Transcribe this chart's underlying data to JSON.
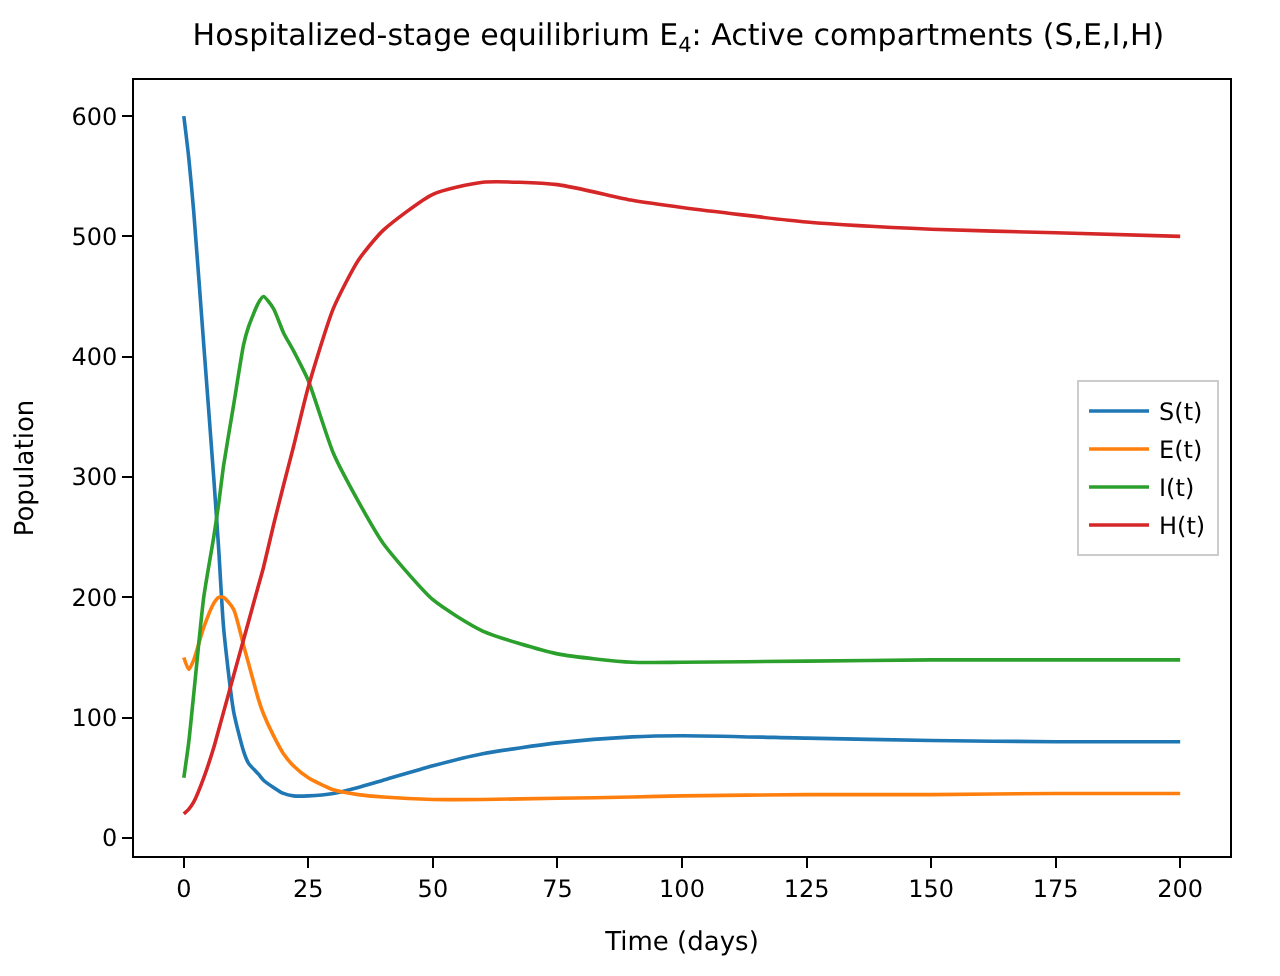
{
  "chart_data": {
    "type": "line",
    "title": "Hospitalized-stage equilibrium E$_{4}$: Active compartments (S,E,I,H)",
    "xlabel": "Time (days)",
    "ylabel": "Population",
    "x": [
      0,
      1,
      2,
      4,
      6,
      7,
      8,
      10,
      12,
      13,
      15,
      16,
      18,
      20,
      22,
      25,
      30,
      35,
      40,
      50,
      60,
      75,
      90,
      100,
      125,
      150,
      175,
      200
    ],
    "xlim": [
      -10,
      210
    ],
    "xticks": [
      0,
      25,
      50,
      75,
      100,
      125,
      150,
      175,
      200
    ],
    "ylim": [
      -15,
      630
    ],
    "yticks": [
      0,
      100,
      200,
      300,
      400,
      500,
      600
    ],
    "legend": "right",
    "line_style": "solid",
    "marker": "none",
    "series": [
      {
        "name": "S(t)",
        "color": "#1f77b4",
        "values": [
          600,
          565,
          520,
          410,
          300,
          240,
          174,
          105,
          72,
          62,
          53,
          48,
          42,
          37,
          35,
          35,
          37,
          42,
          48,
          60,
          70,
          79,
          84,
          85,
          83,
          81,
          80,
          80
        ]
      },
      {
        "name": "E(t)",
        "color": "#ff7f0e",
        "values": [
          150,
          140,
          148,
          175,
          195,
          200,
          200,
          190,
          160,
          145,
          115,
          103,
          85,
          70,
          60,
          50,
          40,
          36,
          34,
          32,
          32,
          33,
          34,
          35,
          36,
          36,
          37,
          37
        ]
      },
      {
        "name": "I(t)",
        "color": "#2ca02c",
        "values": [
          50,
          80,
          120,
          200,
          250,
          278,
          310,
          360,
          410,
          425,
          445,
          450,
          440,
          420,
          405,
          380,
          320,
          280,
          245,
          198,
          172,
          153,
          146,
          146,
          147,
          148,
          148,
          148
        ]
      },
      {
        "name": "H(t)",
        "color": "#d62728",
        "values": [
          20,
          24,
          30,
          50,
          75,
          90,
          105,
          135,
          165,
          180,
          210,
          225,
          260,
          293,
          325,
          375,
          440,
          480,
          505,
          535,
          545,
          543,
          530,
          524,
          512,
          506,
          503,
          500
        ]
      }
    ]
  }
}
